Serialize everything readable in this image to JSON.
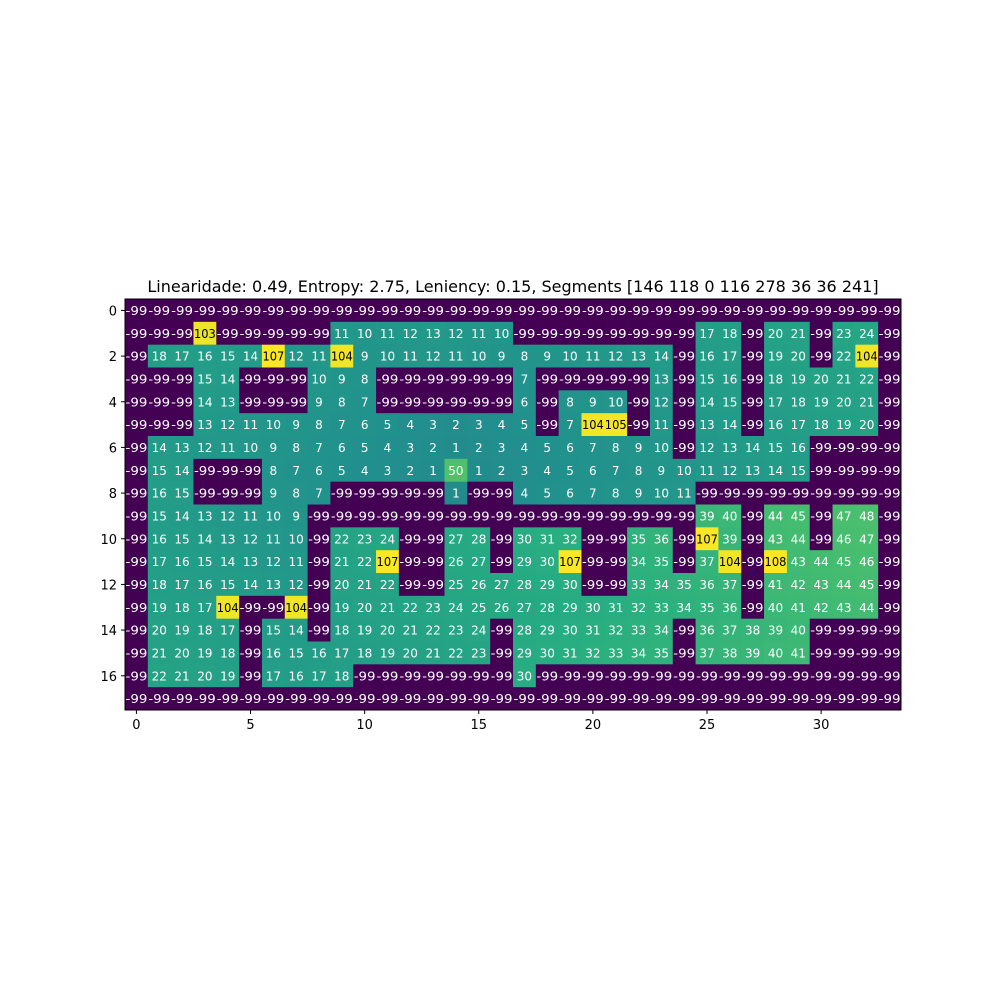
{
  "chart_data": {
    "type": "heatmap",
    "title": "Linearidade: 0.49, Entropy: 2.75, Leniency: 0.15, Segments [146 118   0 116 278  36  36 241]",
    "xlabel": "",
    "ylabel": "",
    "colormap": "viridis",
    "vmin": -99,
    "vmax": 108,
    "x_ticks": [
      "0",
      "5",
      "10",
      "15",
      "20",
      "25",
      "30"
    ],
    "y_ticks": [
      "0",
      "2",
      "4",
      "6",
      "8",
      "10",
      "12",
      "14",
      "16"
    ],
    "grid": false,
    "rows": [
      [
        -99,
        -99,
        -99,
        -99,
        -99,
        -99,
        -99,
        -99,
        -99,
        -99,
        -99,
        -99,
        -99,
        -99,
        -99,
        -99,
        -99,
        -99,
        -99,
        -99,
        -99,
        -99,
        -99,
        -99,
        -99,
        -99,
        -99,
        -99,
        -99,
        -99,
        -99,
        -99,
        -99,
        -99
      ],
      [
        -99,
        -99,
        -99,
        103,
        -99,
        -99,
        -99,
        -99,
        -99,
        11,
        10,
        11,
        12,
        13,
        12,
        11,
        10,
        -99,
        -99,
        -99,
        -99,
        -99,
        -99,
        -99,
        -99,
        17,
        18,
        -99,
        20,
        21,
        -99,
        23,
        24,
        -99
      ],
      [
        -99,
        18,
        17,
        16,
        15,
        14,
        107,
        12,
        11,
        104,
        9,
        10,
        11,
        12,
        11,
        10,
        9,
        8,
        9,
        10,
        11,
        12,
        13,
        14,
        -99,
        16,
        17,
        -99,
        19,
        20,
        -99,
        22,
        104,
        -99
      ],
      [
        -99,
        -99,
        -99,
        15,
        14,
        -99,
        -99,
        -99,
        10,
        9,
        8,
        -99,
        -99,
        -99,
        -99,
        -99,
        -99,
        7,
        -99,
        -99,
        -99,
        -99,
        -99,
        13,
        -99,
        15,
        16,
        -99,
        18,
        19,
        20,
        21,
        22,
        -99
      ],
      [
        -99,
        -99,
        -99,
        14,
        13,
        -99,
        -99,
        -99,
        9,
        8,
        7,
        -99,
        -99,
        -99,
        -99,
        -99,
        -99,
        6,
        -99,
        8,
        9,
        10,
        -99,
        12,
        -99,
        14,
        15,
        -99,
        17,
        18,
        19,
        20,
        21,
        -99
      ],
      [
        -99,
        -99,
        -99,
        13,
        12,
        11,
        10,
        9,
        8,
        7,
        6,
        5,
        4,
        3,
        2,
        3,
        4,
        5,
        -99,
        7,
        104,
        105,
        -99,
        11,
        -99,
        13,
        14,
        -99,
        16,
        17,
        18,
        19,
        20,
        -99
      ],
      [
        -99,
        14,
        13,
        12,
        11,
        10,
        9,
        8,
        7,
        6,
        5,
        4,
        3,
        2,
        1,
        2,
        3,
        4,
        5,
        6,
        7,
        8,
        9,
        10,
        -99,
        12,
        13,
        14,
        15,
        16,
        -99,
        -99,
        -99,
        -99
      ],
      [
        -99,
        15,
        14,
        -99,
        -99,
        -99,
        8,
        7,
        6,
        5,
        4,
        3,
        2,
        1,
        50,
        1,
        2,
        3,
        4,
        5,
        6,
        7,
        8,
        9,
        10,
        11,
        12,
        13,
        14,
        15,
        -99,
        -99,
        -99,
        -99
      ],
      [
        -99,
        16,
        15,
        -99,
        -99,
        -99,
        9,
        8,
        7,
        -99,
        -99,
        -99,
        -99,
        -99,
        1,
        -99,
        -99,
        4,
        5,
        6,
        7,
        8,
        9,
        10,
        11,
        -99,
        -99,
        -99,
        -99,
        -99,
        -99,
        -99,
        -99,
        -99
      ],
      [
        -99,
        15,
        14,
        13,
        12,
        11,
        10,
        9,
        -99,
        -99,
        -99,
        -99,
        -99,
        -99,
        -99,
        -99,
        -99,
        -99,
        -99,
        -99,
        -99,
        -99,
        -99,
        -99,
        -99,
        39,
        40,
        -99,
        44,
        45,
        -99,
        47,
        48,
        -99
      ],
      [
        -99,
        16,
        15,
        14,
        13,
        12,
        11,
        10,
        -99,
        22,
        23,
        24,
        -99,
        -99,
        27,
        28,
        -99,
        30,
        31,
        32,
        -99,
        -99,
        35,
        36,
        -99,
        107,
        39,
        -99,
        43,
        44,
        -99,
        46,
        47,
        -99
      ],
      [
        -99,
        17,
        16,
        15,
        14,
        13,
        12,
        11,
        -99,
        21,
        22,
        107,
        -99,
        -99,
        26,
        27,
        -99,
        29,
        30,
        107,
        -99,
        -99,
        34,
        35,
        -99,
        37,
        104,
        -99,
        108,
        43,
        44,
        45,
        46,
        -99
      ],
      [
        -99,
        18,
        17,
        16,
        15,
        14,
        13,
        12,
        -99,
        20,
        21,
        22,
        -99,
        -99,
        25,
        26,
        27,
        28,
        29,
        30,
        -99,
        -99,
        33,
        34,
        35,
        36,
        37,
        -99,
        41,
        42,
        43,
        44,
        45,
        -99
      ],
      [
        -99,
        19,
        18,
        17,
        104,
        -99,
        -99,
        104,
        -99,
        19,
        20,
        21,
        22,
        23,
        24,
        25,
        26,
        27,
        28,
        29,
        30,
        31,
        32,
        33,
        34,
        35,
        36,
        -99,
        40,
        41,
        42,
        43,
        44,
        -99
      ],
      [
        -99,
        20,
        19,
        18,
        17,
        -99,
        15,
        14,
        -99,
        18,
        19,
        20,
        21,
        22,
        23,
        24,
        -99,
        28,
        29,
        30,
        31,
        32,
        33,
        34,
        -99,
        36,
        37,
        38,
        39,
        40,
        -99,
        -99,
        -99,
        -99
      ],
      [
        -99,
        21,
        20,
        19,
        18,
        -99,
        16,
        15,
        16,
        17,
        18,
        19,
        20,
        21,
        22,
        23,
        -99,
        29,
        30,
        31,
        32,
        33,
        34,
        35,
        -99,
        37,
        38,
        39,
        40,
        41,
        -99,
        -99,
        -99,
        -99
      ],
      [
        -99,
        22,
        21,
        20,
        19,
        -99,
        17,
        16,
        17,
        18,
        -99,
        -99,
        -99,
        -99,
        -99,
        -99,
        -99,
        30,
        -99,
        -99,
        -99,
        -99,
        -99,
        -99,
        -99,
        -99,
        -99,
        -99,
        -99,
        -99,
        -99,
        -99,
        -99,
        -99
      ],
      [
        -99,
        -99,
        -99,
        -99,
        -99,
        -99,
        -99,
        -99,
        -99,
        -99,
        -99,
        -99,
        -99,
        -99,
        -99,
        -99,
        -99,
        -99,
        -99,
        -99,
        -99,
        -99,
        -99,
        -99,
        -99,
        -99,
        -99,
        -99,
        -99,
        -99,
        -99,
        -99,
        -99,
        -99
      ]
    ]
  }
}
